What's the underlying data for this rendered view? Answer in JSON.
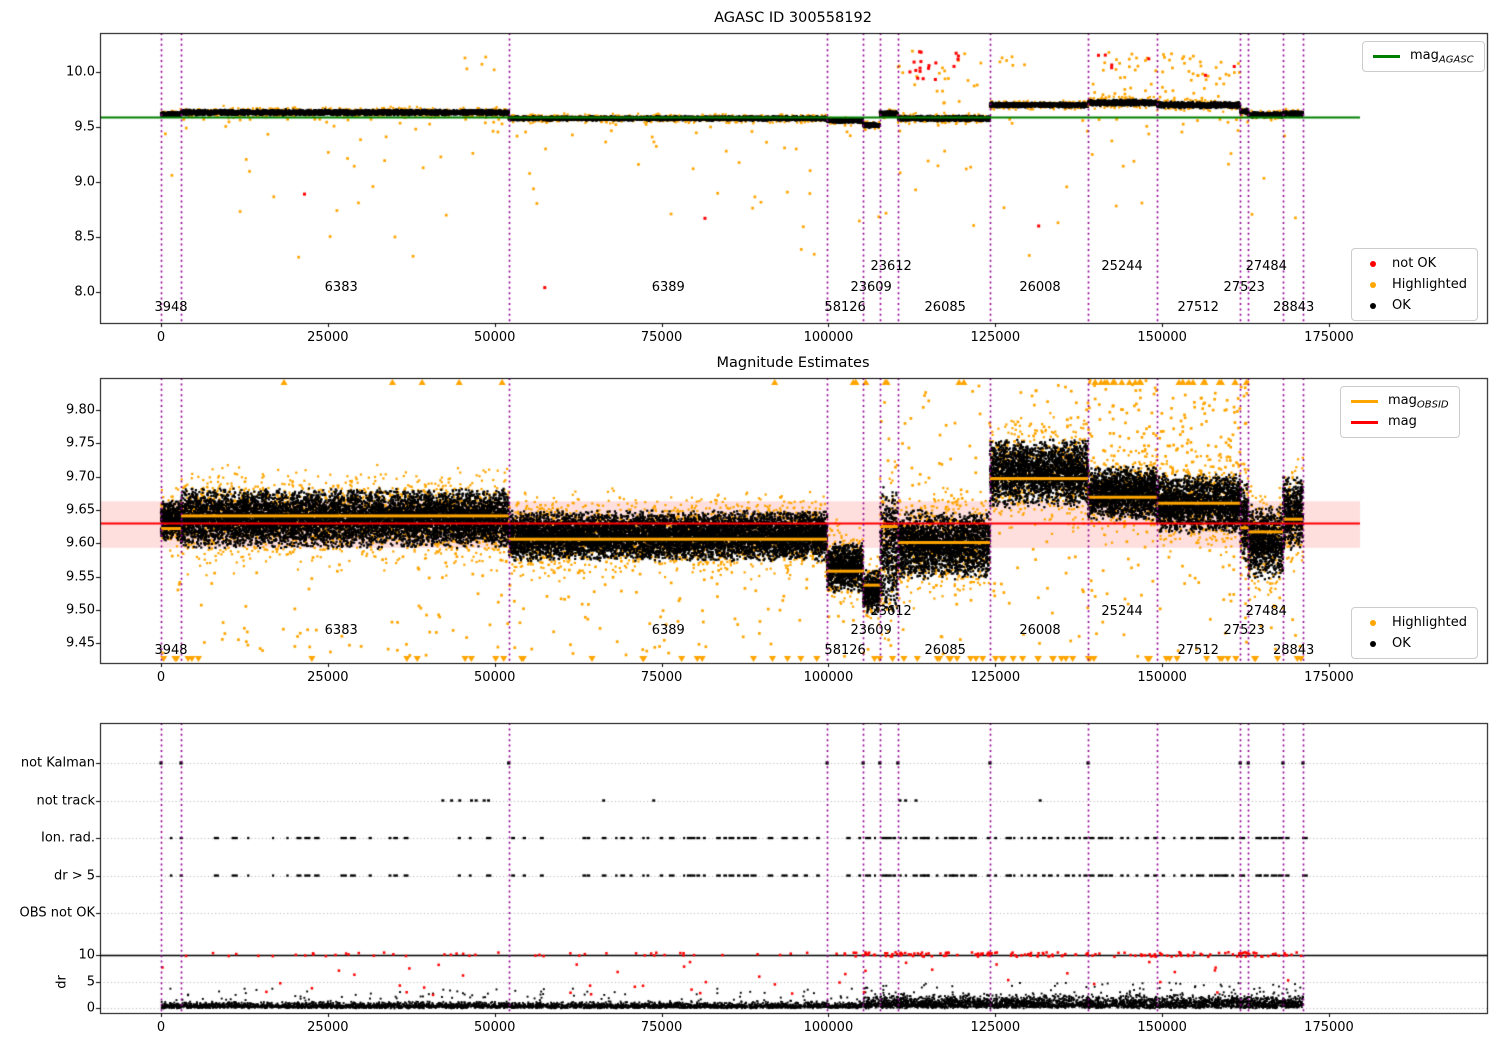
{
  "colors": {
    "orange": "#FFA500",
    "green": "#008000",
    "red": "#FF0000",
    "black": "#000000",
    "purple": "#930093",
    "pink_band": "rgba(255,0,0,0.13)",
    "grid": "#b3b3b3",
    "legend_border": "#cccccc",
    "background": "#ffffff"
  },
  "boundaries": [
    0,
    3000,
    52100,
    99800,
    105200,
    107700,
    110400,
    124200,
    138900,
    149200,
    161700,
    162900,
    168100,
    171100
  ],
  "obsid_labels": [
    {
      "obsid": "3948",
      "x": 1500,
      "row": 3
    },
    {
      "obsid": "6383",
      "x": 27000,
      "row": 2
    },
    {
      "obsid": "6389",
      "x": 76000,
      "row": 2
    },
    {
      "obsid": "58126",
      "x": 102500,
      "row": 3
    },
    {
      "obsid": "23609",
      "x": 106400,
      "row": 2
    },
    {
      "obsid": "23612",
      "x": 109400,
      "row": 1
    },
    {
      "obsid": "26085",
      "x": 117500,
      "row": 3
    },
    {
      "obsid": "26008",
      "x": 131700,
      "row": 2
    },
    {
      "obsid": "25244",
      "x": 144000,
      "row": 1
    },
    {
      "obsid": "27512",
      "x": 155400,
      "row": 3
    },
    {
      "obsid": "27523",
      "x": 162300,
      "row": 2
    },
    {
      "obsid": "27484",
      "x": 165600,
      "row": 1
    },
    {
      "obsid": "28843",
      "x": 169700,
      "row": 3
    }
  ],
  "chart_data": [
    {
      "type": "scatter",
      "title": "AGASC ID 300558192",
      "xticks": [
        0,
        25000,
        50000,
        75000,
        100000,
        125000,
        150000,
        175000
      ],
      "yticks": [
        8.0,
        8.5,
        9.0,
        9.5,
        10.0
      ],
      "ylim": [
        7.72,
        10.36
      ],
      "xlim": [
        -9100,
        198700
      ],
      "ref_line": {
        "label_base": "mag",
        "label_sub": "AGASC",
        "value": 9.59,
        "color": "#008000"
      },
      "legend_markers": [
        {
          "label": "not OK",
          "color": "#FF0000"
        },
        {
          "label": "Highlighted",
          "color": "#FFA500"
        },
        {
          "label": "OK",
          "color": "#000000"
        }
      ],
      "segments": [
        {
          "obsid": "3948",
          "x0": 0,
          "x1": 3000,
          "mag": 9.615,
          "spread": 0.018
        },
        {
          "obsid": "6383",
          "x0": 3000,
          "x1": 52100,
          "mag": 9.632,
          "spread": 0.02
        },
        {
          "obsid": "6389",
          "x0": 52100,
          "x1": 99800,
          "mag": 9.578,
          "spread": 0.016
        },
        {
          "obsid": "58126",
          "x0": 99800,
          "x1": 105200,
          "mag": 9.556,
          "spread": 0.015
        },
        {
          "obsid": "23609",
          "x0": 105200,
          "x1": 107700,
          "mag": 9.516,
          "spread": 0.018
        },
        {
          "obsid": "23612",
          "x0": 107700,
          "x1": 110400,
          "mag": 9.62,
          "spread": 0.022
        },
        {
          "obsid": "26085",
          "x0": 110400,
          "x1": 124200,
          "mag": 9.578,
          "spread": 0.02
        },
        {
          "obsid": "26008",
          "x0": 124200,
          "x1": 138900,
          "mag": 9.7,
          "spread": 0.018
        },
        {
          "obsid": "25244",
          "x0": 138900,
          "x1": 149200,
          "mag": 9.72,
          "spread": 0.022
        },
        {
          "obsid": "27512",
          "x0": 149200,
          "x1": 161700,
          "mag": 9.7,
          "spread": 0.022
        },
        {
          "obsid": "27523",
          "x0": 161700,
          "x1": 162900,
          "mag": 9.64,
          "spread": 0.02
        },
        {
          "obsid": "27484",
          "x0": 162900,
          "x1": 168100,
          "mag": 9.61,
          "spread": 0.02
        },
        {
          "obsid": "28843",
          "x0": 168100,
          "x1": 171100,
          "mag": 9.62,
          "spread": 0.02
        }
      ],
      "red_outliers": [
        [
          21500,
          8.89
        ],
        [
          57500,
          8.04
        ],
        [
          81500,
          8.67
        ],
        [
          131500,
          8.6
        ],
        [
          148000,
          10.12
        ],
        [
          156500,
          9.97
        ],
        [
          160800,
          10.05
        ]
      ],
      "red_clusters": [
        {
          "x0": 111500,
          "x1": 117200,
          "m0": 9.92,
          "m1": 10.22,
          "n": 14
        },
        {
          "x0": 118800,
          "x1": 119900,
          "m0": 10.02,
          "m1": 10.2,
          "n": 4
        },
        {
          "x0": 140300,
          "x1": 142700,
          "m0": 10.02,
          "m1": 10.16,
          "n": 4
        }
      ],
      "orange_above": [
        {
          "x0": 138900,
          "x1": 161800,
          "m0": 9.74,
          "m1": 10.18,
          "n": 70
        },
        {
          "x0": 110400,
          "x1": 124200,
          "m0": 9.7,
          "m1": 10.2,
          "n": 22
        },
        {
          "x0": 125500,
          "x1": 129800,
          "m0": 9.95,
          "m1": 10.2,
          "n": 6
        },
        {
          "x0": 45500,
          "x1": 50800,
          "m0": 9.9,
          "m1": 10.15,
          "n": 5
        }
      ],
      "orange_below": {
        "x0": 0,
        "x1": 171000,
        "m0": 8.3,
        "m1": 9.57,
        "n": 150
      }
    },
    {
      "type": "scatter",
      "title": "Magnitude Estimates",
      "xticks": [
        0,
        25000,
        50000,
        75000,
        100000,
        125000,
        150000,
        175000
      ],
      "yticks": [
        9.45,
        9.5,
        9.55,
        9.6,
        9.65,
        9.7,
        9.75,
        9.8
      ],
      "ylim": [
        9.42,
        9.848
      ],
      "xlim": [
        -9100,
        198700
      ],
      "obsid_line_legend": {
        "label_base": "mag",
        "label_sub": "OBSID",
        "color": "#FFA500"
      },
      "mag_line": {
        "label_base": "mag",
        "label_sub": "",
        "value": 9.63,
        "color": "#FF0000"
      },
      "mag_band": [
        9.593,
        9.663
      ],
      "legend_markers": [
        {
          "label": "Highlighted",
          "color": "#FFA500"
        },
        {
          "label": "OK",
          "color": "#000000"
        }
      ],
      "segments": [
        {
          "obsid": "3948",
          "x0": 0,
          "x1": 3000,
          "lo": 9.607,
          "hi": 9.662,
          "line": 9.622
        },
        {
          "obsid": "6383",
          "x0": 3000,
          "x1": 52100,
          "lo": 9.596,
          "hi": 9.678,
          "line": 9.641
        },
        {
          "obsid": "6389",
          "x0": 52100,
          "x1": 99800,
          "lo": 9.576,
          "hi": 9.646,
          "line": 9.606
        },
        {
          "obsid": "58126",
          "x0": 99800,
          "x1": 105200,
          "lo": 9.53,
          "hi": 9.6,
          "line": 9.558
        },
        {
          "obsid": "23609",
          "x0": 105200,
          "x1": 107700,
          "lo": 9.497,
          "hi": 9.56,
          "line": 9.537
        },
        {
          "obsid": "23612",
          "x0": 107700,
          "x1": 110400,
          "lo": 9.5,
          "hi": 9.68,
          "line": 9.625
        },
        {
          "obsid": "26085",
          "x0": 110400,
          "x1": 124200,
          "lo": 9.55,
          "hi": 9.645,
          "line": 9.601
        },
        {
          "obsid": "26008",
          "x0": 124200,
          "x1": 138900,
          "lo": 9.658,
          "hi": 9.752,
          "line": 9.697
        },
        {
          "obsid": "25244",
          "x0": 138900,
          "x1": 149200,
          "lo": 9.638,
          "hi": 9.712,
          "line": 9.669
        },
        {
          "obsid": "27512",
          "x0": 149200,
          "x1": 161700,
          "lo": 9.618,
          "hi": 9.7,
          "line": 9.66
        },
        {
          "obsid": "27523",
          "x0": 161700,
          "x1": 162900,
          "lo": 9.575,
          "hi": 9.69,
          "line": 9.623
        },
        {
          "obsid": "27484",
          "x0": 162900,
          "x1": 168100,
          "lo": 9.548,
          "hi": 9.652,
          "line": 9.617
        },
        {
          "obsid": "28843",
          "x0": 168100,
          "x1": 171100,
          "lo": 9.593,
          "hi": 9.7,
          "line": 9.636
        }
      ],
      "orange_spray": [
        {
          "x0": 138900,
          "x1": 162900,
          "m0": 9.7,
          "m1": 9.845,
          "n": 160
        },
        {
          "x0": 124200,
          "x1": 138900,
          "m0": 9.75,
          "m1": 9.84,
          "n": 25
        },
        {
          "x0": 107700,
          "x1": 124200,
          "m0": 9.65,
          "m1": 9.84,
          "n": 40
        }
      ],
      "orange_scatter": {
        "x0": 0,
        "x1": 171000,
        "m0": 9.43,
        "m1": 9.62,
        "n": 300
      },
      "clip_low_n": 70,
      "clip_high": [
        {
          "x0": 138900,
          "x1": 162900,
          "n": 26
        },
        {
          "x0": 100000,
          "x1": 125000,
          "n": 8
        },
        {
          "x0": 15000,
          "x1": 95000,
          "n": 6
        }
      ]
    },
    {
      "type": "flags",
      "rows": [
        "not Kalman",
        "not track",
        "Ion. rad.",
        "dr > 5",
        "OBS not OK"
      ],
      "dr": {
        "label": "dr",
        "ticks": [
          0,
          5,
          10
        ],
        "cap": 10
      },
      "xticks": [
        0,
        25000,
        50000,
        75000,
        100000,
        125000,
        150000,
        175000
      ],
      "not_kalman_x": [
        0,
        3000,
        52100,
        99800,
        105200,
        107700,
        110400,
        124200,
        138900,
        161700,
        162900,
        168100,
        171100
      ],
      "not_track_spans": [
        [
          42000,
          45200
        ],
        [
          46300,
          49700
        ],
        [
          66100,
          66700
        ],
        [
          73600,
          74200
        ],
        [
          110500,
          112200
        ],
        [
          112900,
          114300
        ],
        [
          131500,
          132000
        ]
      ],
      "obs_not_ok_x": [],
      "data_x_end": 171100
    }
  ]
}
